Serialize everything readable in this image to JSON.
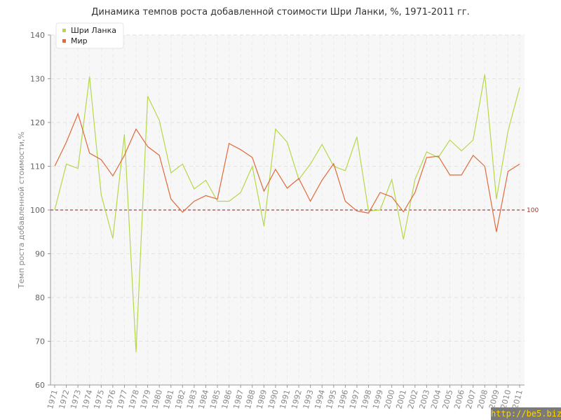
{
  "chart_data": {
    "type": "line",
    "title": "Динамика темпов роста добавленной стоимости Шри Ланки, %, 1971-2011 гг.",
    "ylabel": "Темп роста добавленной стоимости,%",
    "xlabel": "",
    "ylim": [
      60,
      140
    ],
    "yticks": [
      60,
      70,
      80,
      90,
      100,
      110,
      120,
      130,
      140
    ],
    "grid": true,
    "legend_position": "top-left",
    "reference_line": {
      "value": 100,
      "label": "100",
      "color": "#8b1a1a"
    },
    "categories": [
      "1971",
      "1972",
      "1973",
      "1974",
      "1975",
      "1976",
      "1977",
      "1978",
      "1979",
      "1980",
      "1981",
      "1982",
      "1983",
      "1984",
      "1985",
      "1986",
      "1987",
      "1988",
      "1989",
      "1990",
      "1991",
      "1992",
      "1993",
      "1994",
      "1995",
      "1996",
      "1997",
      "1998",
      "1999",
      "2000",
      "2001",
      "2002",
      "2003",
      "2004",
      "2005",
      "2006",
      "2007",
      "2008",
      "2009",
      "2010",
      "2011"
    ],
    "series": [
      {
        "name": "Шри Ланка",
        "color": "#b5d84b",
        "values": [
          100,
          110.5,
          109.5,
          130.5,
          103.5,
          93.5,
          117.3,
          67.5,
          126,
          120.5,
          108.5,
          110.5,
          104.8,
          106.8,
          102,
          102,
          104,
          110,
          96.3,
          118.5,
          115.5,
          107,
          110.5,
          115,
          110,
          109,
          116.7,
          99.8,
          100,
          107,
          93.3,
          107,
          113.3,
          112,
          116,
          113.5,
          116,
          131,
          102.5,
          118,
          128
        ]
      },
      {
        "name": "Мир",
        "color": "#e06a3a",
        "values": [
          110,
          115.5,
          122,
          113,
          111.5,
          107.8,
          112.5,
          118.5,
          114.5,
          112.5,
          102.5,
          99.5,
          102,
          103.3,
          102.5,
          115.2,
          113.8,
          112,
          104.3,
          109.3,
          105,
          107.2,
          102,
          106.8,
          110.6,
          102,
          99.8,
          99.3,
          104,
          103,
          99.6,
          104,
          112,
          112.3,
          108,
          108,
          112.5,
          110,
          95,
          108.8,
          110.5
        ]
      }
    ]
  },
  "watermark": "http://be5.biz/"
}
